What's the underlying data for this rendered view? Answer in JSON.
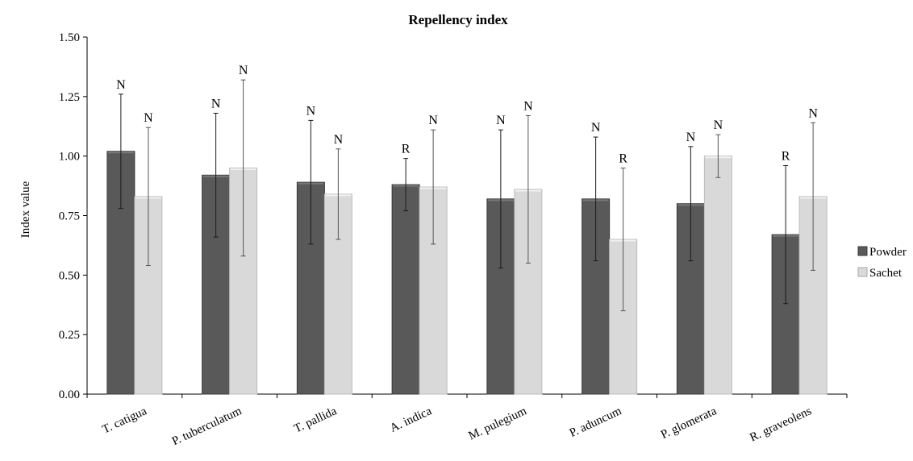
{
  "chart_data": {
    "type": "bar",
    "title": "Repellency index",
    "ylabel": "Index value",
    "xlabel": "",
    "ylim": [
      0,
      1.5
    ],
    "yticks": [
      "0.00",
      "0.25",
      "0.50",
      "0.75",
      "1.00",
      "1.25",
      "1.50"
    ],
    "categories": [
      "T. catigua",
      "P. tuberculatum",
      "T. pallida",
      "A. indica",
      "M. pulegium",
      "P. aduncum",
      "P. glomerata",
      "R. graveolens"
    ],
    "series": [
      {
        "name": "Powder",
        "color": "#595959",
        "values": [
          1.02,
          0.92,
          0.89,
          0.88,
          0.82,
          0.82,
          0.8,
          0.67
        ],
        "err_low": [
          0.78,
          0.66,
          0.63,
          0.77,
          0.53,
          0.56,
          0.56,
          0.38
        ],
        "err_high": [
          1.26,
          1.18,
          1.15,
          0.99,
          1.11,
          1.08,
          1.04,
          0.96
        ],
        "labels": [
          "N",
          "N",
          "N",
          "R",
          "N",
          "N",
          "N",
          "R"
        ]
      },
      {
        "name": "Sachet",
        "color": "#d9d9d9",
        "values": [
          0.83,
          0.95,
          0.84,
          0.87,
          0.86,
          0.65,
          1.0,
          0.83
        ],
        "err_low": [
          0.54,
          0.58,
          0.65,
          0.63,
          0.55,
          0.35,
          0.91,
          0.52
        ],
        "err_high": [
          1.12,
          1.32,
          1.03,
          1.11,
          1.17,
          0.95,
          1.09,
          1.14
        ],
        "labels": [
          "N",
          "N",
          "N",
          "N",
          "N",
          "R",
          "N",
          "N"
        ]
      }
    ],
    "legend_position": "right",
    "grid": false
  }
}
